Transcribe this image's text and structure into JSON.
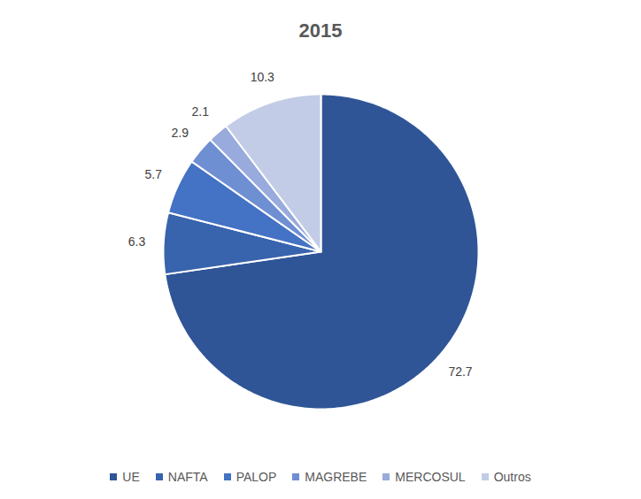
{
  "chart_data": {
    "type": "pie",
    "title": "2015",
    "categories": [
      "UE",
      "NAFTA",
      "PALOP",
      "MAGREBE",
      "MERCOSUL",
      "Outros"
    ],
    "values": [
      72.7,
      6.3,
      5.7,
      2.9,
      2.1,
      10.3
    ],
    "colors": [
      "#2f5597",
      "#3863ad",
      "#4472c4",
      "#6f8fd3",
      "#98abdc",
      "#c2cce6"
    ],
    "data_labels": true,
    "legend": "bottom"
  }
}
